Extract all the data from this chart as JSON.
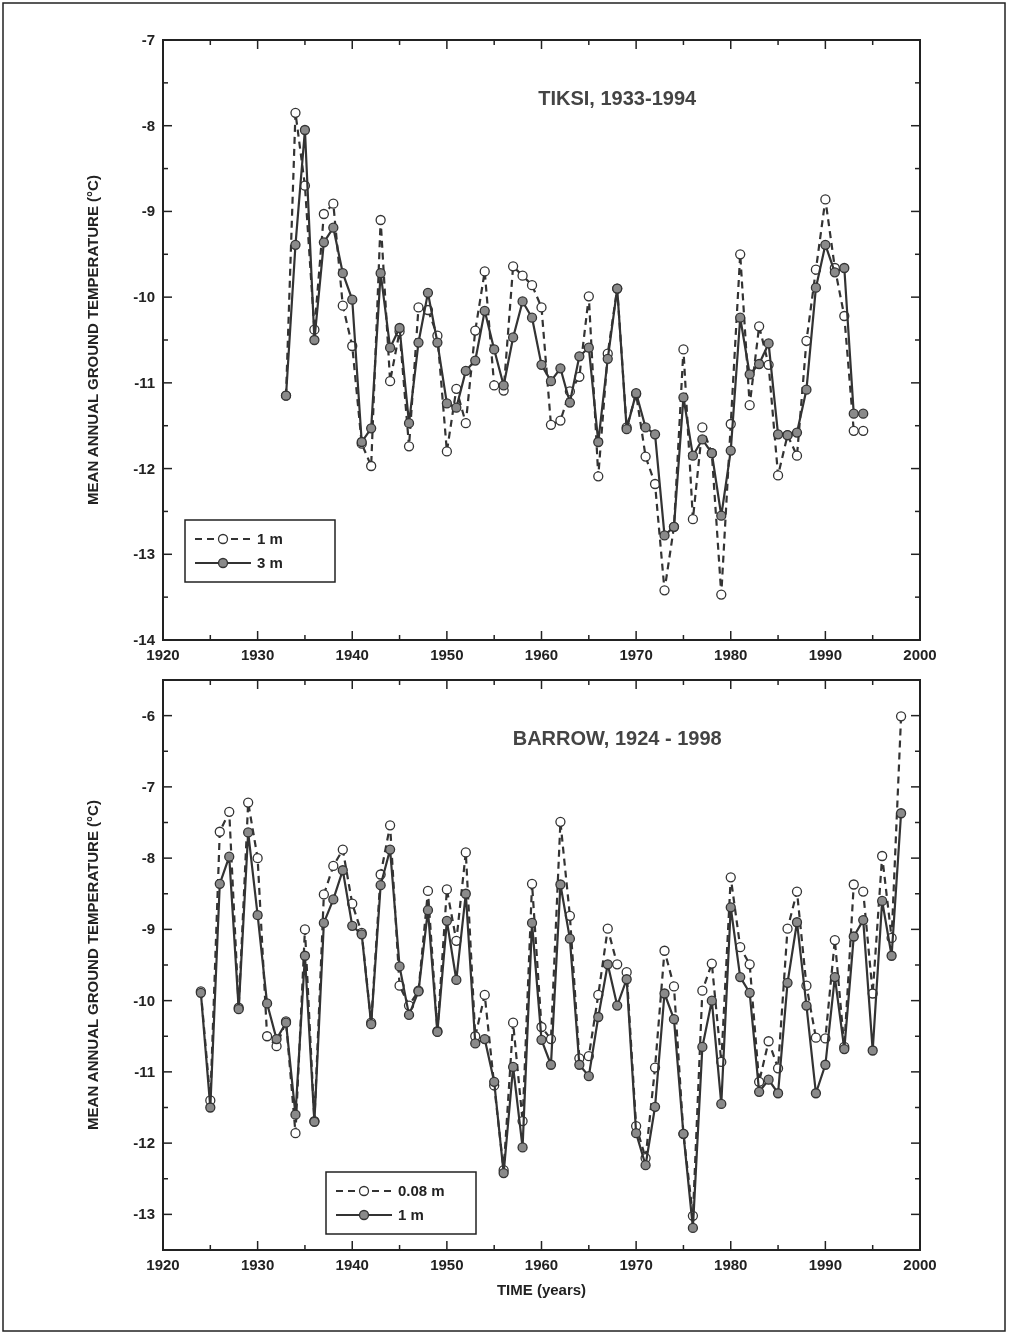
{
  "chart_data": [
    {
      "type": "line",
      "title": "TIKSI, 1933-1994",
      "ylabel": "MEAN ANNUAL GROUND TEMPERATURE (°C)",
      "x": [
        1933,
        1934,
        1935,
        1936,
        1937,
        1938,
        1939,
        1940,
        1941,
        1942,
        1943,
        1944,
        1945,
        1946,
        1947,
        1948,
        1949,
        1950,
        1951,
        1952,
        1953,
        1954,
        1955,
        1956,
        1957,
        1958,
        1959,
        1960,
        1961,
        1962,
        1963,
        1964,
        1965,
        1966,
        1967,
        1968,
        1969,
        1970,
        1971,
        1972,
        1973,
        1974,
        1975,
        1976,
        1977,
        1978,
        1979,
        1980,
        1981,
        1982,
        1983,
        1984,
        1985,
        1986,
        1987,
        1988,
        1989,
        1990,
        1991,
        1992,
        1993,
        1994
      ],
      "series": [
        {
          "name": "1 m",
          "color": "#333333",
          "line_style": "dashed",
          "values": [
            -11.15,
            -7.85,
            -8.7,
            -10.38,
            -9.03,
            -8.91,
            -10.1,
            -10.57,
            -11.71,
            -11.97,
            -9.1,
            -10.98,
            -10.4,
            -11.74,
            -10.12,
            -10.15,
            -10.45,
            -11.8,
            -11.07,
            -11.47,
            -10.39,
            -9.7,
            -11.03,
            -11.09,
            -9.64,
            -9.75,
            -9.86,
            -10.12,
            -11.49,
            -11.44,
            -11.1,
            -10.93,
            -9.99,
            -12.09,
            -10.66,
            -9.9,
            -11.52,
            -11.13,
            -11.86,
            -12.18,
            -13.42,
            -12.68,
            -10.61,
            -12.59,
            -11.52,
            -11.82,
            -13.47,
            -11.48,
            -9.5,
            -11.26,
            -10.34,
            -10.79,
            -12.08,
            -11.61,
            -11.85,
            -10.51,
            -9.68,
            -8.86,
            -9.66,
            -10.22,
            -11.56,
            -11.56
          ]
        },
        {
          "name": "3 m",
          "color": "#333333",
          "line_style": "solid",
          "values": [
            -11.15,
            -9.39,
            -8.05,
            -10.5,
            -9.36,
            -9.19,
            -9.72,
            -10.03,
            -11.69,
            -11.53,
            -9.72,
            -10.59,
            -10.36,
            -11.47,
            -10.53,
            -9.95,
            -10.53,
            -11.24,
            -11.29,
            -10.86,
            -10.74,
            -10.16,
            -10.61,
            -11.03,
            -10.47,
            -10.05,
            -10.24,
            -10.79,
            -10.98,
            -10.83,
            -11.23,
            -10.69,
            -10.59,
            -11.69,
            -10.72,
            -9.9,
            -11.54,
            -11.12,
            -11.52,
            -11.6,
            -12.78,
            -12.68,
            -11.17,
            -11.85,
            -11.66,
            -11.82,
            -12.55,
            -11.79,
            -10.24,
            -10.9,
            -10.78,
            -10.54,
            -11.6,
            -11.61,
            -11.58,
            -11.08,
            -9.89,
            -9.39,
            -9.71,
            -9.66,
            -11.36,
            -11.36
          ]
        }
      ],
      "xlim": [
        1920,
        2000
      ],
      "xticks": [
        1920,
        {
          "value": 1925,
          "label": null
        },
        1930,
        {
          "value": 1935,
          "label": null
        },
        1940,
        {
          "value": 1945,
          "label": null
        },
        1950,
        {
          "value": 1955,
          "label": null
        },
        1960,
        {
          "value": 1965,
          "label": null
        },
        1970,
        {
          "value": 1975,
          "label": null
        },
        1980,
        {
          "value": 1985,
          "label": null
        },
        1990,
        {
          "value": 1995,
          "label": null
        },
        2000
      ],
      "ylim": [
        -14,
        -7
      ],
      "yticks": [
        -14,
        {
          "value": -13.5,
          "label": null
        },
        -13,
        {
          "value": -12.5,
          "label": null
        },
        -12,
        {
          "value": -11.5,
          "label": null
        },
        -11,
        {
          "value": -10.5,
          "label": null
        },
        -10,
        {
          "value": -9.5,
          "label": null
        },
        -9,
        {
          "value": -8.5,
          "label": null
        },
        -8,
        {
          "value": -7.5,
          "label": null
        },
        -7
      ],
      "marker": "circle",
      "legend": "bottom left",
      "grid": false
    },
    {
      "type": "line",
      "title": "BARROW, 1924 - 1998",
      "xlabel": "TIME (years)",
      "ylabel": "MEAN ANNUAL GROUND TEMPERATURE (°C)",
      "x": [
        1924,
        1925,
        1926,
        1927,
        1928,
        1929,
        1930,
        1931,
        1932,
        1933,
        1934,
        1935,
        1936,
        1937,
        1938,
        1939,
        1940,
        1941,
        1942,
        1943,
        1944,
        1945,
        1946,
        1947,
        1948,
        1949,
        1950,
        1951,
        1952,
        1953,
        1954,
        1955,
        1956,
        1957,
        1958,
        1959,
        1960,
        1961,
        1962,
        1963,
        1964,
        1965,
        1966,
        1967,
        1968,
        1969,
        1970,
        1971,
        1972,
        1973,
        1974,
        1975,
        1976,
        1977,
        1978,
        1979,
        1980,
        1981,
        1982,
        1983,
        1984,
        1985,
        1986,
        1987,
        1988,
        1989,
        1990,
        1991,
        1992,
        1993,
        1994,
        1995,
        1996,
        1997,
        1998
      ],
      "series": [
        {
          "name": "0.08 m",
          "color": "#333333",
          "line_style": "dashed",
          "values": [
            -9.87,
            -11.4,
            -7.63,
            -7.35,
            -10.1,
            -7.22,
            -8.0,
            -10.5,
            -10.64,
            -10.29,
            -11.86,
            -9.0,
            -11.69,
            -8.51,
            -8.11,
            -7.88,
            -8.64,
            -9.05,
            -10.31,
            -8.23,
            -7.54,
            -9.79,
            -10.07,
            -9.86,
            -8.46,
            -10.43,
            -8.44,
            -9.16,
            -7.92,
            -10.5,
            -9.92,
            -11.19,
            -12.38,
            -10.31,
            -11.69,
            -8.36,
            -10.37,
            -10.54,
            -7.49,
            -8.81,
            -10.81,
            -10.78,
            -9.92,
            -8.99,
            -9.49,
            -9.6,
            -11.76,
            -12.21,
            -10.94,
            -9.3,
            -9.8,
            -11.87,
            -13.02,
            -9.86,
            -9.48,
            -10.86,
            -8.27,
            -9.25,
            -9.49,
            -11.14,
            -10.57,
            -10.95,
            -8.99,
            -8.47,
            -9.79,
            -10.52,
            -10.53,
            -9.15,
            -10.65,
            -8.37,
            -8.47,
            -9.9,
            -7.97,
            -9.12,
            -6.01
          ]
        },
        {
          "name": "1 m",
          "color": "#333333",
          "line_style": "solid",
          "values": [
            -9.89,
            -11.5,
            -8.36,
            -7.98,
            -10.12,
            -7.64,
            -8.8,
            -10.04,
            -10.54,
            -10.31,
            -11.6,
            -9.37,
            -11.7,
            -8.91,
            -8.58,
            -8.17,
            -8.95,
            -9.07,
            -10.33,
            -8.38,
            -7.88,
            -9.52,
            -10.2,
            -9.87,
            -8.73,
            -10.44,
            -8.88,
            -9.71,
            -8.5,
            -10.6,
            -10.54,
            -11.14,
            -12.42,
            -10.93,
            -12.06,
            -8.91,
            -10.55,
            -10.9,
            -8.37,
            -9.13,
            -10.9,
            -11.06,
            -10.23,
            -9.49,
            -10.07,
            -9.7,
            -11.86,
            -12.31,
            -11.49,
            -9.9,
            -10.26,
            -11.87,
            -13.19,
            -10.65,
            -10.0,
            -11.45,
            -8.69,
            -9.67,
            -9.89,
            -11.28,
            -11.11,
            -11.3,
            -9.75,
            -8.9,
            -10.07,
            -11.3,
            -10.9,
            -9.67,
            -10.68,
            -9.1,
            -8.87,
            -10.7,
            -8.6,
            -9.37,
            -7.37
          ]
        }
      ],
      "xlim": [
        1920,
        2000
      ],
      "xticks": [
        1920,
        {
          "value": 1925,
          "label": null
        },
        1930,
        {
          "value": 1935,
          "label": null
        },
        1940,
        {
          "value": 1945,
          "label": null
        },
        1950,
        {
          "value": 1955,
          "label": null
        },
        1960,
        {
          "value": 1965,
          "label": null
        },
        1970,
        {
          "value": 1975,
          "label": null
        },
        1980,
        {
          "value": 1985,
          "label": null
        },
        1990,
        {
          "value": 1995,
          "label": null
        },
        2000
      ],
      "ylim": [
        -13.5,
        -5.5
      ],
      "yticks": [
        -13,
        {
          "value": -12.5,
          "label": null
        },
        -12,
        {
          "value": -11.5,
          "label": null
        },
        -11,
        {
          "value": -10.5,
          "label": null
        },
        -10,
        {
          "value": -9.5,
          "label": null
        },
        -9,
        {
          "value": -8.5,
          "label": null
        },
        -8,
        {
          "value": -7.5,
          "label": null
        },
        -7,
        {
          "value": -6.5,
          "label": null
        },
        -6
      ],
      "marker": "circle",
      "legend": "bottom",
      "grid": false
    }
  ]
}
